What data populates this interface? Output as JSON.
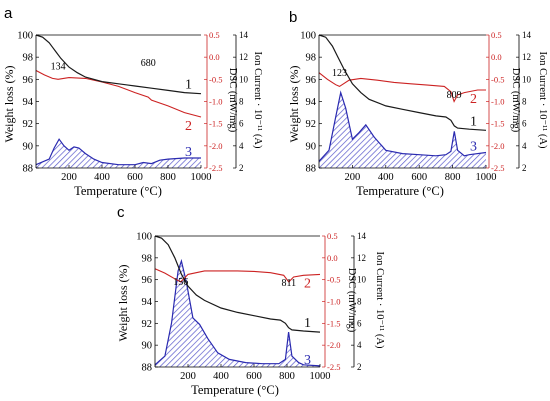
{
  "colors": {
    "tg": "#1a1a1a",
    "dsc": "#cc2222",
    "ion": "#2a2ab0",
    "ion_fill": "#7f7fd8",
    "axis_black": "#000000"
  },
  "chart_data": [
    {
      "type": "line",
      "panel_label": "a",
      "xlabel": "Temperature (°C)",
      "xlim": [
        0,
        1000
      ],
      "xticks": [
        200,
        400,
        600,
        800,
        1000
      ],
      "left_axis": {
        "label": "Weight loss (%)",
        "ylim": [
          88,
          100
        ],
        "ticks": [
          88,
          90,
          92,
          94,
          96,
          98,
          100
        ]
      },
      "right_axis_1": {
        "label": "DSC (mW/mg)",
        "ylim": [
          -2.5,
          0.5
        ],
        "ticks": [
          "-2.5",
          "-2.0",
          "-1.5",
          "-1.0",
          "-0.5",
          "0.0",
          "0.5"
        ]
      },
      "right_axis_2": {
        "label": "Ion Current · 10⁻¹¹ (A)",
        "ylim": [
          2,
          14
        ],
        "ticks": [
          2,
          4,
          6,
          8,
          10,
          12,
          14
        ]
      },
      "annotations": [
        {
          "text": "134",
          "x": 134,
          "y": 96.9
        },
        {
          "text": "680",
          "x": 680,
          "y": 97.2
        }
      ],
      "series": [
        {
          "curve_label": "1",
          "axis": "left",
          "x": [
            0,
            40,
            80,
            100,
            120,
            150,
            200,
            250,
            300,
            400,
            500,
            600,
            700,
            800,
            900,
            1000
          ],
          "y": [
            100,
            99.8,
            99.3,
            98.9,
            98.5,
            97.9,
            97.1,
            96.6,
            96.2,
            95.8,
            95.6,
            95.4,
            95.2,
            95.0,
            94.8,
            94.7
          ]
        },
        {
          "curve_label": "2",
          "axis": "right1",
          "x": [
            0,
            50,
            100,
            134,
            200,
            300,
            400,
            500,
            600,
            680,
            700,
            800,
            900,
            1000
          ],
          "y": [
            -0.3,
            -0.4,
            -0.48,
            -0.5,
            -0.46,
            -0.48,
            -0.56,
            -0.66,
            -0.8,
            -0.9,
            -0.97,
            -1.1,
            -1.25,
            -1.35
          ]
        },
        {
          "curve_label": "3",
          "axis": "right2",
          "x": [
            0,
            80,
            110,
            140,
            170,
            200,
            230,
            260,
            300,
            350,
            400,
            500,
            600,
            650,
            700,
            750,
            800,
            900,
            1000
          ],
          "y": [
            2.3,
            2.8,
            3.8,
            4.6,
            4.0,
            3.6,
            3.9,
            3.8,
            3.3,
            2.8,
            2.5,
            2.3,
            2.3,
            2.5,
            2.4,
            2.7,
            2.8,
            2.9,
            2.9
          ]
        }
      ]
    },
    {
      "type": "line",
      "panel_label": "b",
      "xlabel": "Temperature (°C)",
      "xlim": [
        0,
        1000
      ],
      "xticks": [
        200,
        400,
        600,
        800,
        1000
      ],
      "left_axis": {
        "label": "Weight loss (%)",
        "ylim": [
          88,
          100
        ],
        "ticks": [
          88,
          90,
          92,
          94,
          96,
          98,
          100
        ]
      },
      "right_axis_1": {
        "label": "DSC (mW/mg)",
        "ylim": [
          -2.5,
          0.5
        ],
        "ticks": [
          "-2.5",
          "-2.0",
          "-1.5",
          "-1.0",
          "-0.5",
          "0.0",
          "0.5"
        ]
      },
      "right_axis_2": {
        "label": "Ion Current · 10⁻¹¹ (A)",
        "ylim": [
          2,
          14
        ],
        "ticks": [
          2,
          4,
          6,
          8,
          10,
          12,
          14
        ]
      },
      "annotations": [
        {
          "text": "123",
          "x": 123,
          "y": 96.3
        },
        {
          "text": "809",
          "x": 809,
          "y": 94.3
        }
      ],
      "series": [
        {
          "curve_label": "1",
          "axis": "left",
          "x": [
            0,
            40,
            80,
            110,
            150,
            200,
            250,
            300,
            400,
            500,
            600,
            700,
            760,
            790,
            810,
            830,
            900,
            1000
          ],
          "y": [
            100,
            99.8,
            99.0,
            98.1,
            96.9,
            95.6,
            94.8,
            94.2,
            93.6,
            93.3,
            93.0,
            92.7,
            92.6,
            92.3,
            91.8,
            91.6,
            91.5,
            91.4
          ]
        },
        {
          "curve_label": "2",
          "axis": "right1",
          "x": [
            0,
            50,
            100,
            123,
            180,
            250,
            350,
            450,
            550,
            650,
            750,
            790,
            809,
            830,
            870,
            950,
            1000
          ],
          "y": [
            -0.35,
            -0.5,
            -0.62,
            -0.66,
            -0.52,
            -0.48,
            -0.52,
            -0.57,
            -0.6,
            -0.63,
            -0.66,
            -0.78,
            -1.0,
            -0.85,
            -0.8,
            -0.74,
            -0.74
          ]
        },
        {
          "curve_label": "3",
          "axis": "right2",
          "x": [
            0,
            60,
            100,
            130,
            160,
            200,
            240,
            280,
            330,
            400,
            500,
            600,
            700,
            760,
            790,
            810,
            830,
            870,
            900,
            1000
          ],
          "y": [
            2.6,
            3.6,
            6.6,
            8.8,
            7.4,
            4.6,
            5.2,
            5.9,
            4.8,
            3.6,
            3.3,
            3.2,
            3.1,
            3.2,
            3.5,
            5.3,
            3.6,
            3.1,
            3.2,
            3.4
          ]
        }
      ]
    },
    {
      "type": "line",
      "panel_label": "c",
      "xlabel": "Temperature (°C)",
      "xlim": [
        0,
        1000
      ],
      "xticks": [
        200,
        400,
        600,
        800,
        1000
      ],
      "left_axis": {
        "label": "Weight loss (%)",
        "ylim": [
          88,
          100
        ],
        "ticks": [
          88,
          90,
          92,
          94,
          96,
          98,
          100
        ]
      },
      "right_axis_1": {
        "label": "DSC (mW/mg)",
        "ylim": [
          -2.5,
          0.5
        ],
        "ticks": [
          "-2.5",
          "-2.0",
          "-1.5",
          "-1.0",
          "-0.5",
          "0.0",
          "0.5"
        ]
      },
      "right_axis_2": {
        "label": "Ion Current · 10⁻¹¹ (A)",
        "ylim": [
          2,
          14
        ],
        "ticks": [
          2,
          4,
          6,
          8,
          10,
          12,
          14
        ]
      },
      "annotations": [
        {
          "text": "156",
          "x": 156,
          "y": 95.5
        },
        {
          "text": "811",
          "x": 811,
          "y": 95.4
        }
      ],
      "series": [
        {
          "curve_label": "1",
          "axis": "left",
          "x": [
            0,
            40,
            80,
            120,
            160,
            200,
            250,
            300,
            400,
            500,
            600,
            700,
            760,
            790,
            810,
            830,
            900,
            1000
          ],
          "y": [
            100,
            99.8,
            99.2,
            98.0,
            96.5,
            95.4,
            94.6,
            94.1,
            93.4,
            93.0,
            92.7,
            92.4,
            92.3,
            92.0,
            91.6,
            91.4,
            91.3,
            91.2
          ]
        },
        {
          "curve_label": "2",
          "axis": "right1",
          "x": [
            0,
            60,
            120,
            156,
            200,
            300,
            400,
            500,
            600,
            700,
            780,
            811,
            840,
            900,
            1000
          ],
          "y": [
            -0.25,
            -0.35,
            -0.48,
            -0.55,
            -0.38,
            -0.3,
            -0.3,
            -0.3,
            -0.31,
            -0.34,
            -0.4,
            -0.55,
            -0.44,
            -0.4,
            -0.38
          ]
        },
        {
          "curve_label": "3",
          "axis": "right2",
          "x": [
            0,
            60,
            100,
            140,
            160,
            190,
            230,
            270,
            320,
            380,
            450,
            550,
            650,
            750,
            790,
            810,
            830,
            870,
            900,
            1000
          ],
          "y": [
            2.2,
            3.0,
            6.0,
            10.8,
            11.7,
            9.8,
            6.5,
            5.9,
            4.6,
            3.3,
            2.7,
            2.4,
            2.3,
            2.3,
            2.7,
            5.2,
            3.0,
            2.4,
            2.2,
            2.1
          ]
        }
      ]
    }
  ]
}
